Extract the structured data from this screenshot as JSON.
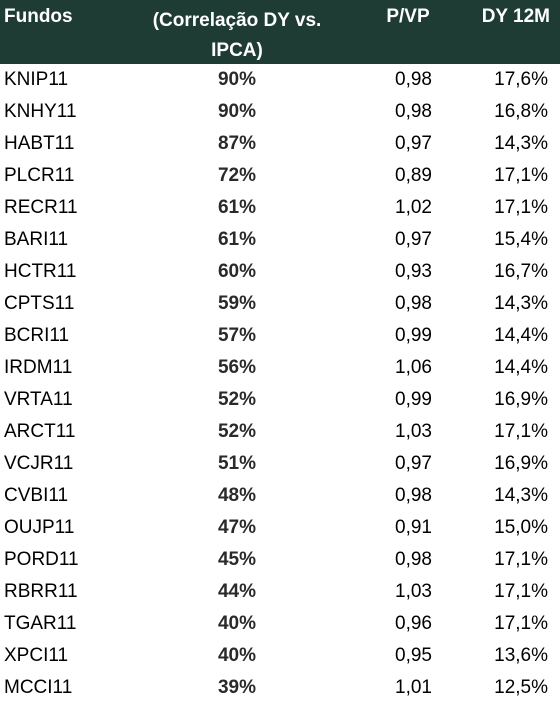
{
  "headers": {
    "fundos": "Fundos",
    "correlacao_line1": "(Correlação DY vs.",
    "correlacao_line2": "IPCA)",
    "pvp": "P/VP",
    "dy12m": "DY 12M"
  },
  "colors": {
    "header_bg": "#1e3c34",
    "header_text": "#ffffff"
  },
  "rows": [
    {
      "fundo": "KNIP11",
      "correlacao": "90%",
      "pvp": "0,98",
      "dy": "17,6%"
    },
    {
      "fundo": "KNHY11",
      "correlacao": "90%",
      "pvp": "0,98",
      "dy": "16,8%"
    },
    {
      "fundo": "HABT11",
      "correlacao": "87%",
      "pvp": "0,97",
      "dy": "14,3%"
    },
    {
      "fundo": "PLCR11",
      "correlacao": "72%",
      "pvp": "0,89",
      "dy": "17,1%"
    },
    {
      "fundo": "RECR11",
      "correlacao": "61%",
      "pvp": "1,02",
      "dy": "17,1%"
    },
    {
      "fundo": "BARI11",
      "correlacao": "61%",
      "pvp": "0,97",
      "dy": "15,4%"
    },
    {
      "fundo": "HCTR11",
      "correlacao": "60%",
      "pvp": "0,93",
      "dy": "16,7%"
    },
    {
      "fundo": "CPTS11",
      "correlacao": "59%",
      "pvp": "0,98",
      "dy": "14,3%"
    },
    {
      "fundo": "BCRI11",
      "correlacao": "57%",
      "pvp": "0,99",
      "dy": "14,4%"
    },
    {
      "fundo": "IRDM11",
      "correlacao": "56%",
      "pvp": "1,06",
      "dy": "14,4%"
    },
    {
      "fundo": "VRTA11",
      "correlacao": "52%",
      "pvp": "0,99",
      "dy": "16,9%"
    },
    {
      "fundo": "ARCT11",
      "correlacao": "52%",
      "pvp": "1,03",
      "dy": "17,1%"
    },
    {
      "fundo": "VCJR11",
      "correlacao": "51%",
      "pvp": "0,97",
      "dy": "16,9%"
    },
    {
      "fundo": "CVBI11",
      "correlacao": "48%",
      "pvp": "0,98",
      "dy": "14,3%"
    },
    {
      "fundo": "OUJP11",
      "correlacao": "47%",
      "pvp": "0,91",
      "dy": "15,0%"
    },
    {
      "fundo": "PORD11",
      "correlacao": "45%",
      "pvp": "0,98",
      "dy": "17,1%"
    },
    {
      "fundo": "RBRR11",
      "correlacao": "44%",
      "pvp": "1,03",
      "dy": "17,1%"
    },
    {
      "fundo": "TGAR11",
      "correlacao": "40%",
      "pvp": "0,96",
      "dy": "17,1%"
    },
    {
      "fundo": "XPCI11",
      "correlacao": "40%",
      "pvp": "0,95",
      "dy": "13,6%"
    },
    {
      "fundo": "MCCI11",
      "correlacao": "39%",
      "pvp": "1,01",
      "dy": "12,5%"
    }
  ]
}
